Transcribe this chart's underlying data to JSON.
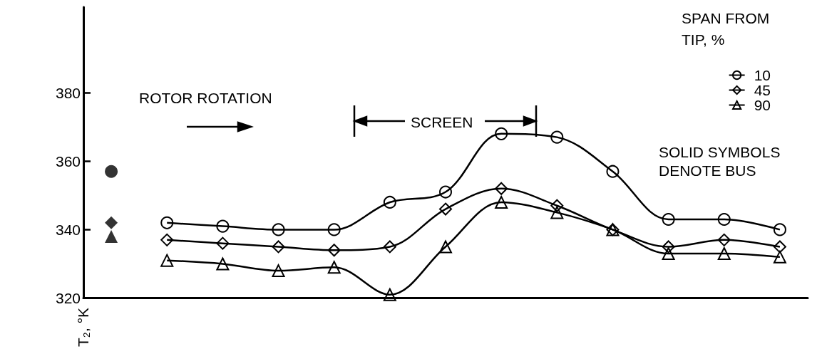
{
  "chart_data": {
    "type": "line",
    "ylabel": "T₂, °K",
    "legend_title": "SPAN FROM TIP, %",
    "legend": "top right",
    "categories": [
      null,
      null,
      null,
      null,
      null,
      null,
      null,
      null,
      null,
      null,
      null,
      null,
      null
    ],
    "series": [
      {
        "name": "10",
        "color": "#000000",
        "marker": "circle",
        "values": [
          null,
          342,
          341,
          340,
          340,
          348,
          351,
          368,
          367,
          357,
          343,
          343,
          340
        ]
      },
      {
        "name": "45",
        "color": "#000000",
        "marker": "diamond",
        "values": [
          null,
          337,
          336,
          335,
          334,
          335,
          346,
          352,
          347,
          340,
          335,
          337,
          335
        ]
      },
      {
        "name": "90",
        "color": "#000000",
        "marker": "triangle",
        "values": [
          null,
          331,
          330,
          328,
          329,
          321,
          335,
          348,
          345,
          340,
          333,
          333,
          332
        ]
      },
      {
        "type": "scatter",
        "color": "#000000",
        "marker": "circle",
        "values": [
          357,
          null,
          null,
          null,
          null,
          null,
          null,
          null,
          null,
          null,
          null,
          null,
          null
        ]
      },
      {
        "type": "scatter",
        "color": "#000000",
        "marker": "diamond",
        "values": [
          342,
          null,
          null,
          null,
          null,
          null,
          null,
          null,
          null,
          null,
          null,
          null,
          null
        ]
      },
      {
        "type": "scatter",
        "color": "#000000",
        "marker": "triangle",
        "values": [
          338,
          null,
          null,
          null,
          null,
          null,
          null,
          null,
          null,
          null,
          null,
          null,
          null
        ]
      }
    ],
    "ylim": [
      320,
      405
    ],
    "yticks": [
      320,
      340,
      360,
      380
    ],
    "grid": false,
    "annotations": [
      "ROTOR ROTATION",
      "SCREEN",
      "SOLID SYMBOLS DENOTE BUS"
    ]
  }
}
